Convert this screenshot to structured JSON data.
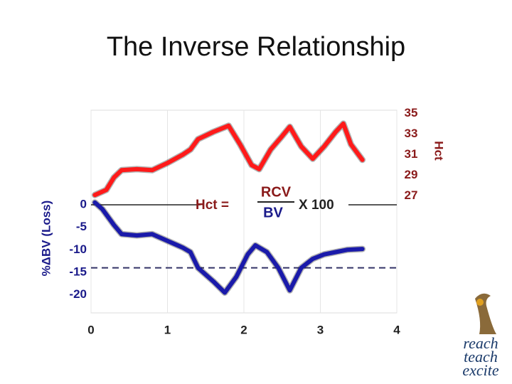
{
  "chart_data": {
    "type": "line",
    "title": "The Inverse Relationship",
    "y_label": "%ΔBV (Loss)",
    "y2_label": "Hct",
    "xlim": [
      0,
      4
    ],
    "xticks": [
      0,
      1,
      2,
      3,
      4
    ],
    "ylim": [
      -24,
      21
    ],
    "yticks": [
      0,
      -5,
      -10,
      -15,
      -20
    ],
    "y2lim": [
      15.7,
      35.3
    ],
    "y2ticks": [
      35,
      33,
      31,
      29,
      27
    ],
    "grid": true,
    "zero_line": true,
    "reference_line": -14,
    "formula": {
      "lhs": "Hct =",
      "numerator": "RCV",
      "denominator": "BV",
      "multiplier": "X 100"
    },
    "series": [
      {
        "name": "Hct",
        "color": "#ff1a1a",
        "axis": "y2",
        "x": [
          0.05,
          0.2,
          0.3,
          0.4,
          0.6,
          0.8,
          1.0,
          1.2,
          1.3,
          1.4,
          1.6,
          1.8,
          1.95,
          2.1,
          2.2,
          2.35,
          2.5,
          2.6,
          2.75,
          2.9,
          3.05,
          3.2,
          3.3,
          3.4,
          3.55
        ],
        "values": [
          27.1,
          27.6,
          28.8,
          29.5,
          29.6,
          29.5,
          30.2,
          31.0,
          31.5,
          32.5,
          33.2,
          33.8,
          32.0,
          30.0,
          29.6,
          31.5,
          32.8,
          33.7,
          31.8,
          30.6,
          31.8,
          33.2,
          34.0,
          32.0,
          30.5
        ]
      },
      {
        "name": "%ΔBV",
        "color": "#1a1aaa",
        "axis": "y",
        "x": [
          0.05,
          0.15,
          0.3,
          0.4,
          0.6,
          0.8,
          1.0,
          1.2,
          1.3,
          1.4,
          1.6,
          1.75,
          1.9,
          2.05,
          2.15,
          2.3,
          2.45,
          2.6,
          2.75,
          2.9,
          3.05,
          3.2,
          3.35,
          3.55
        ],
        "values": [
          0.5,
          -1,
          -4.5,
          -6.5,
          -6.8,
          -6.5,
          -8,
          -9.5,
          -10.5,
          -14,
          -17,
          -19.5,
          -16,
          -11,
          -9,
          -10.5,
          -14,
          -19,
          -14,
          -12,
          -11,
          -10.5,
          -10,
          -9.8
        ]
      }
    ]
  },
  "logo": {
    "words": [
      "reach",
      "teach",
      "excite"
    ]
  }
}
